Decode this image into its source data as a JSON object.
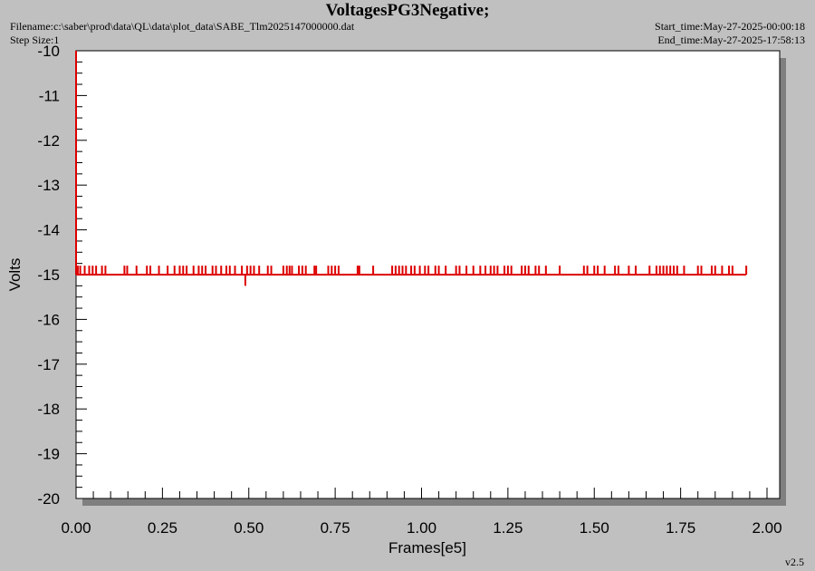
{
  "header": {
    "title": "VoltagesPG3Negative;",
    "filename": "Filename:c:\\saber\\prod\\data\\QL\\data\\plot_data\\SABE_Tlm2025147000000.dat",
    "step_size": "Step Size:1",
    "start_time": "Start_time:May-27-2025-00:00:18",
    "end_time": "End_time:May-27-2025-17:58:13"
  },
  "version": "v2.5",
  "colors": {
    "background": "#c0c0c0",
    "plot_bg": "#ffffff",
    "series": "#dd0000",
    "axis": "#000000"
  },
  "chart_data": {
    "type": "line",
    "title": "VoltagesPG3Negative;",
    "xlabel": "Frames[e5]",
    "ylabel": "Volts",
    "xlim": [
      0,
      2.0
    ],
    "ylim": [
      -20,
      -10
    ],
    "x_ticks": [
      "0.00",
      "0.25",
      "0.50",
      "0.75",
      "1.00",
      "1.25",
      "1.50",
      "1.75",
      "2.00"
    ],
    "y_ticks": [
      "-10",
      "-11",
      "-12",
      "-13",
      "-14",
      "-15",
      "-16",
      "-17",
      "-18",
      "-19",
      "-20"
    ],
    "grid": false,
    "series": [
      {
        "baseline": -15.0,
        "x_range": [
          0.0,
          1.94
        ],
        "spike_value": -14.8,
        "spikes_x": [
          0.005,
          0.012,
          0.025,
          0.038,
          0.048,
          0.058,
          0.075,
          0.085,
          0.14,
          0.148,
          0.175,
          0.205,
          0.215,
          0.24,
          0.265,
          0.285,
          0.3,
          0.31,
          0.32,
          0.34,
          0.355,
          0.365,
          0.375,
          0.395,
          0.405,
          0.42,
          0.435,
          0.445,
          0.46,
          0.48,
          0.495,
          0.505,
          0.515,
          0.53,
          0.555,
          0.565,
          0.6,
          0.61,
          0.618,
          0.625,
          0.645,
          0.655,
          0.665,
          0.69,
          0.695,
          0.73,
          0.74,
          0.75,
          0.76,
          0.815,
          0.82,
          0.86,
          0.915,
          0.925,
          0.935,
          0.945,
          0.955,
          0.97,
          0.98,
          0.995,
          1.01,
          1.02,
          1.04,
          1.05,
          1.07,
          1.1,
          1.11,
          1.13,
          1.15,
          1.17,
          1.185,
          1.2,
          1.21,
          1.22,
          1.24,
          1.25,
          1.26,
          1.29,
          1.3,
          1.31,
          1.33,
          1.34,
          1.36,
          1.4,
          1.47,
          1.48,
          1.5,
          1.51,
          1.53,
          1.56,
          1.57,
          1.6,
          1.62,
          1.66,
          1.68,
          1.69,
          1.7,
          1.71,
          1.72,
          1.73,
          1.74,
          1.76,
          1.8,
          1.81,
          1.84,
          1.85,
          1.87,
          1.89,
          1.9,
          1.94
        ],
        "dips": [
          {
            "x": 0.49,
            "y": -15.25
          }
        ],
        "initial_segment": {
          "x": 0.0,
          "y_from": -10.0,
          "y_to": -15.0
        }
      }
    ]
  }
}
